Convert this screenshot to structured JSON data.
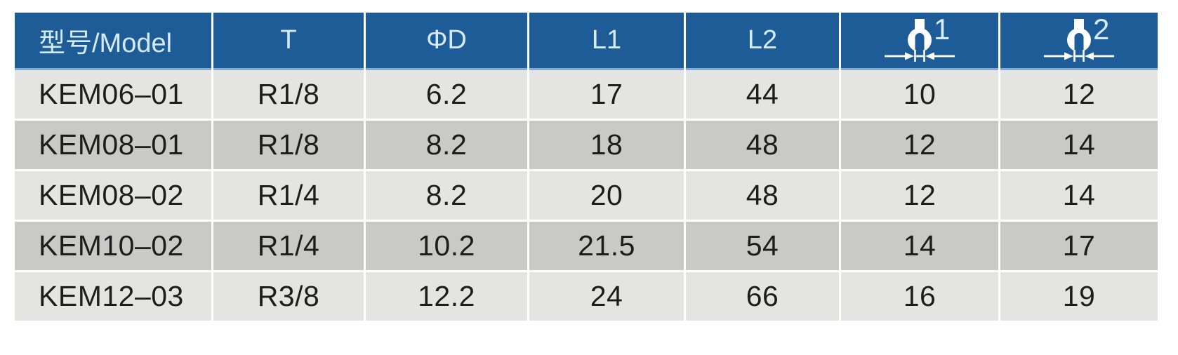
{
  "colors": {
    "header_bg": "#1d5c96",
    "header_text": "#d6ebfa",
    "header_underline": "#85abd1",
    "row_light": "#e4e5e3",
    "row_dark": "#c9cac8",
    "cell_text": "#1d1d1d",
    "gap": "#ffffff",
    "page_bg": "#ffffff",
    "icon": "#ffffff"
  },
  "table": {
    "columns": [
      {
        "key": "model",
        "label": "型号/Model"
      },
      {
        "key": "t",
        "label": "T"
      },
      {
        "key": "d",
        "label": "ΦD"
      },
      {
        "key": "l1",
        "label": "L1"
      },
      {
        "key": "l2",
        "label": "L2"
      },
      {
        "key": "wrench1",
        "label": "1",
        "icon": "wrench-width-icon"
      },
      {
        "key": "wrench2",
        "label": "2",
        "icon": "wrench-width-icon"
      }
    ],
    "rows": [
      [
        "KEM06–01",
        "R1/8",
        "6.2",
        "17",
        "44",
        "10",
        "12"
      ],
      [
        "KEM08–01",
        "R1/8",
        "8.2",
        "18",
        "48",
        "12",
        "14"
      ],
      [
        "KEM08–02",
        "R1/4",
        "8.2",
        "20",
        "48",
        "12",
        "14"
      ],
      [
        "KEM10–02",
        "R1/4",
        "10.2",
        "21.5",
        "54",
        "14",
        "17"
      ],
      [
        "KEM12–03",
        "R3/8",
        "12.2",
        "24",
        "66",
        "16",
        "19"
      ]
    ]
  }
}
